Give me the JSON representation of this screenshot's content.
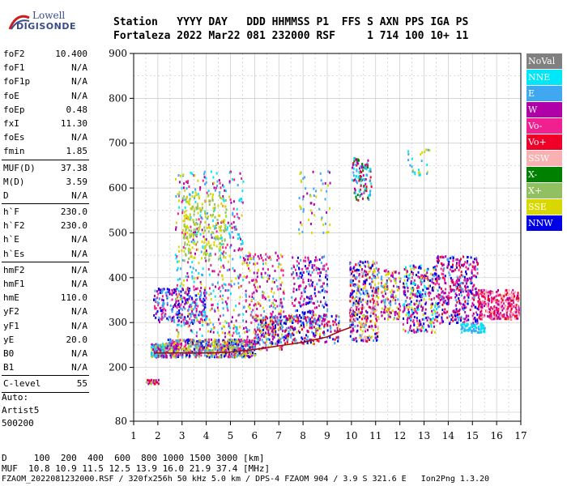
{
  "logo": {
    "line1": "Lowell",
    "line2": "DIGISONDE"
  },
  "header": {
    "row1": "Station   YYYY DAY   DDD HHMMSS P1  FFS S AXN PPS IGA PS",
    "row2": "Fortaleza 2022 Mar22 081 232000 RSF     1 714 100 10+ 11"
  },
  "params": [
    [
      {
        "k": "foF2",
        "v": "10.400"
      },
      {
        "k": "foF1",
        "v": "N/A"
      },
      {
        "k": "foF1p",
        "v": "N/A"
      },
      {
        "k": "foE",
        "v": "N/A"
      },
      {
        "k": "foEp",
        "v": "0.48"
      },
      {
        "k": "fxI",
        "v": "11.30"
      },
      {
        "k": "foEs",
        "v": "N/A"
      },
      {
        "k": "fmin",
        "v": "1.85"
      }
    ],
    [
      {
        "k": "MUF(D)",
        "v": "37.38"
      },
      {
        "k": "M(D)",
        "v": "3.59"
      },
      {
        "k": "D",
        "v": "N/A"
      }
    ],
    [
      {
        "k": "h`F",
        "v": "230.0"
      },
      {
        "k": "h`F2",
        "v": "230.0"
      },
      {
        "k": "h`E",
        "v": "N/A"
      },
      {
        "k": "h`Es",
        "v": "N/A"
      }
    ],
    [
      {
        "k": "hmF2",
        "v": "N/A"
      },
      {
        "k": "hmF1",
        "v": "N/A"
      },
      {
        "k": "hmE",
        "v": "110.0"
      },
      {
        "k": "yF2",
        "v": "N/A"
      },
      {
        "k": "yF1",
        "v": "N/A"
      },
      {
        "k": "yE",
        "v": "20.0"
      },
      {
        "k": "B0",
        "v": "N/A"
      },
      {
        "k": "B1",
        "v": "N/A"
      }
    ],
    [
      {
        "k": "C-level",
        "v": "55"
      }
    ]
  ],
  "autoscale": {
    "line1": "Auto:",
    "line2": "Artist5",
    "line3": "500200"
  },
  "footer": {
    "row1": "D     100  200  400  600  800 1000 1500 3000 [km]",
    "row2": "MUF  10.8 10.9 11.5 12.5 13.9 16.0 21.9 37.4 [MHz]",
    "row3": "FZAOM_2022081232000.RSF / 320fx256h 50 kHz 5.0 km / DPS-4 FZAOM 904 / 3.9 S 321.6 E   Ion2Png 1.3.20"
  },
  "legend": [
    {
      "label": "NoVal",
      "color": "#808080"
    },
    {
      "label": "NNE",
      "color": "#00e8f8"
    },
    {
      "label": "E",
      "color": "#40a8f0"
    },
    {
      "label": "W",
      "color": "#b000a8"
    },
    {
      "label": "Vo-",
      "color": "#f02090"
    },
    {
      "label": "Vo+",
      "color": "#f00028"
    },
    {
      "label": "SSW",
      "color": "#f8b0b0"
    },
    {
      "label": "X-",
      "color": "#008000"
    },
    {
      "label": "X+",
      "color": "#90c060"
    },
    {
      "label": "SSE",
      "color": "#d8d800"
    },
    {
      "label": "NNW",
      "color": "#0000e8"
    }
  ],
  "chart_data": {
    "type": "scatter",
    "title": "",
    "xlabel": "",
    "ylabel": "",
    "xlim": [
      1,
      17
    ],
    "ylim": [
      80,
      900
    ],
    "x_ticks": [
      1,
      2,
      3,
      4,
      5,
      6,
      7,
      8,
      9,
      10,
      11,
      12,
      13,
      14,
      15,
      16,
      17
    ],
    "y_ticks": [
      80,
      200,
      300,
      400,
      500,
      600,
      700,
      800,
      900
    ],
    "grid": true,
    "trace_curve": [
      [
        1.85,
        232
      ],
      [
        2.5,
        232
      ],
      [
        3.0,
        232
      ],
      [
        4.0,
        232
      ],
      [
        5.0,
        234
      ],
      [
        6.0,
        240
      ],
      [
        7.0,
        248
      ],
      [
        8.0,
        256
      ],
      [
        9.0,
        268
      ],
      [
        9.5,
        280
      ],
      [
        10.0,
        290
      ]
    ],
    "clusters": [
      {
        "xr": [
          1.7,
          2.3
        ],
        "yr": [
          225,
          255
        ],
        "n": 180,
        "colors": [
          "#40a8f0",
          "#00e8f8",
          "#b000a8",
          "#d8d800"
        ]
      },
      {
        "xr": [
          2.3,
          6.0
        ],
        "yr": [
          225,
          265
        ],
        "n": 700,
        "colors": [
          "#40a8f0",
          "#b000a8",
          "#f02090",
          "#d8d800",
          "#0000e8",
          "#90c060"
        ]
      },
      {
        "xr": [
          1.8,
          4.0
        ],
        "yr": [
          300,
          380
        ],
        "n": 260,
        "colors": [
          "#b000a8",
          "#f02090",
          "#0000e8",
          "#40a8f0"
        ]
      },
      {
        "xr": [
          2.7,
          5.5
        ],
        "yr": [
          270,
          640
        ],
        "n": 520,
        "colors": [
          "#40a8f0",
          "#b000a8",
          "#d8d800",
          "#f02090",
          "#00e8f8"
        ]
      },
      {
        "xr": [
          3.0,
          4.8
        ],
        "yr": [
          440,
          590
        ],
        "n": 200,
        "colors": [
          "#d8d800",
          "#90c060"
        ]
      },
      {
        "xr": [
          5.5,
          7.2
        ],
        "yr": [
          240,
          460
        ],
        "n": 280,
        "colors": [
          "#b000a8",
          "#40a8f0",
          "#d8d800",
          "#f02090"
        ]
      },
      {
        "xr": [
          6.0,
          9.5
        ],
        "yr": [
          255,
          320
        ],
        "n": 360,
        "colors": [
          "#d8d800",
          "#b000a8",
          "#40a8f0",
          "#f00028",
          "#0000e8"
        ]
      },
      {
        "xr": [
          7.5,
          9.0
        ],
        "yr": [
          300,
          450
        ],
        "n": 220,
        "colors": [
          "#0000e8",
          "#b000a8",
          "#40a8f0",
          "#f02090"
        ]
      },
      {
        "xr": [
          7.8,
          9.1
        ],
        "yr": [
          500,
          640
        ],
        "n": 60,
        "colors": [
          "#d8d800",
          "#b000a8",
          "#40a8f0"
        ]
      },
      {
        "xr": [
          9.9,
          11.1
        ],
        "yr": [
          260,
          440
        ],
        "n": 420,
        "colors": [
          "#f00028",
          "#b000a8",
          "#d8d800",
          "#0000e8",
          "#40a8f0",
          "#f8b0b0"
        ]
      },
      {
        "xr": [
          10.0,
          10.8
        ],
        "yr": [
          575,
          670
        ],
        "n": 120,
        "colors": [
          "#00e8f8",
          "#40a8f0",
          "#b000a8",
          "#f00028",
          "#008000"
        ]
      },
      {
        "xr": [
          11.2,
          12.0
        ],
        "yr": [
          310,
          420
        ],
        "n": 140,
        "colors": [
          "#40a8f0",
          "#b000a8",
          "#f02090",
          "#d8d800"
        ]
      },
      {
        "xr": [
          12.1,
          13.5
        ],
        "yr": [
          280,
          430
        ],
        "n": 320,
        "colors": [
          "#0000e8",
          "#b000a8",
          "#00e8f8",
          "#d8d800",
          "#f02090"
        ]
      },
      {
        "xr": [
          13.5,
          15.2
        ],
        "yr": [
          300,
          450
        ],
        "n": 380,
        "colors": [
          "#0000e8",
          "#b000a8",
          "#40a8f0",
          "#f02090",
          "#f00028"
        ]
      },
      {
        "xr": [
          14.5,
          15.5
        ],
        "yr": [
          280,
          300
        ],
        "n": 80,
        "colors": [
          "#40a8f0",
          "#00e8f8"
        ]
      },
      {
        "xr": [
          15.2,
          16.9
        ],
        "yr": [
          310,
          375
        ],
        "n": 330,
        "colors": [
          "#f00028",
          "#b000a8",
          "#f02090",
          "#f8b0b0"
        ]
      },
      {
        "xr": [
          12.3,
          13.2
        ],
        "yr": [
          630,
          690
        ],
        "n": 25,
        "colors": [
          "#d8d800",
          "#40a8f0",
          "#00e8f8"
        ]
      },
      {
        "xr": [
          1.5,
          2.0
        ],
        "yr": [
          165,
          175
        ],
        "n": 25,
        "colors": [
          "#f00028",
          "#90c060",
          "#b000a8"
        ]
      }
    ]
  }
}
